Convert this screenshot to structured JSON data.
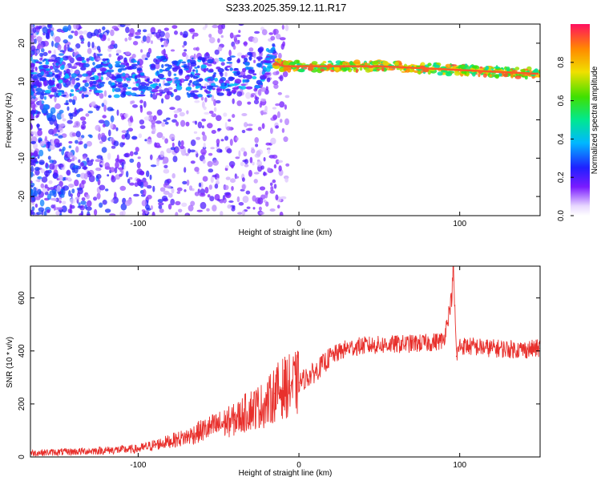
{
  "title": "S233.2025.359.12.11.R17",
  "colors": {
    "snr_line": "#e8302c",
    "accent": "#cc0000"
  },
  "chart_data": [
    {
      "type": "heatmap",
      "title": "S233.2025.359.12.11.R17",
      "xlabel": "Height of straight line (km)",
      "ylabel": "Frequency (Hz)",
      "xlim": [
        -167,
        150
      ],
      "ylim": [
        -25,
        25
      ],
      "xticks": [
        -100,
        0,
        100
      ],
      "yticks": [
        -20,
        -10,
        0,
        10,
        20
      ],
      "colorbar": {
        "label": "Normalized spectral amplitude",
        "range": [
          0.0,
          1.0
        ],
        "ticks": [
          "0.0",
          "0.2",
          "0.4",
          "0.6",
          "0.8"
        ]
      },
      "ridge": {
        "x": [
          -167,
          -120,
          -80,
          -50,
          -30,
          -20,
          -15,
          -10,
          0,
          50,
          100,
          150
        ],
        "freq": [
          11,
          11,
          11.5,
          11,
          13,
          14,
          15,
          14,
          14,
          14,
          13,
          12
        ]
      }
    },
    {
      "type": "line",
      "xlabel": "Height of straight line (km)",
      "ylabel": "SNR (10 * v/v)",
      "xlim": [
        -167,
        150
      ],
      "ylim": [
        0,
        720
      ],
      "xticks": [
        -100,
        0,
        100
      ],
      "yticks": [
        0,
        200,
        400,
        600
      ],
      "series": [
        {
          "name": "SNR",
          "x": [
            -167,
            -140,
            -120,
            -100,
            -90,
            -80,
            -70,
            -60,
            -50,
            -40,
            -30,
            -20,
            -15,
            -10,
            -5,
            0,
            10,
            20,
            30,
            40,
            60,
            80,
            90,
            95,
            96,
            98,
            100,
            110,
            120,
            140,
            150
          ],
          "y": [
            15,
            20,
            25,
            30,
            45,
            60,
            75,
            100,
            120,
            140,
            180,
            200,
            240,
            260,
            270,
            280,
            320,
            380,
            410,
            420,
            425,
            430,
            440,
            600,
            720,
            380,
            420,
            415,
            410,
            405,
            410
          ]
        }
      ]
    }
  ]
}
